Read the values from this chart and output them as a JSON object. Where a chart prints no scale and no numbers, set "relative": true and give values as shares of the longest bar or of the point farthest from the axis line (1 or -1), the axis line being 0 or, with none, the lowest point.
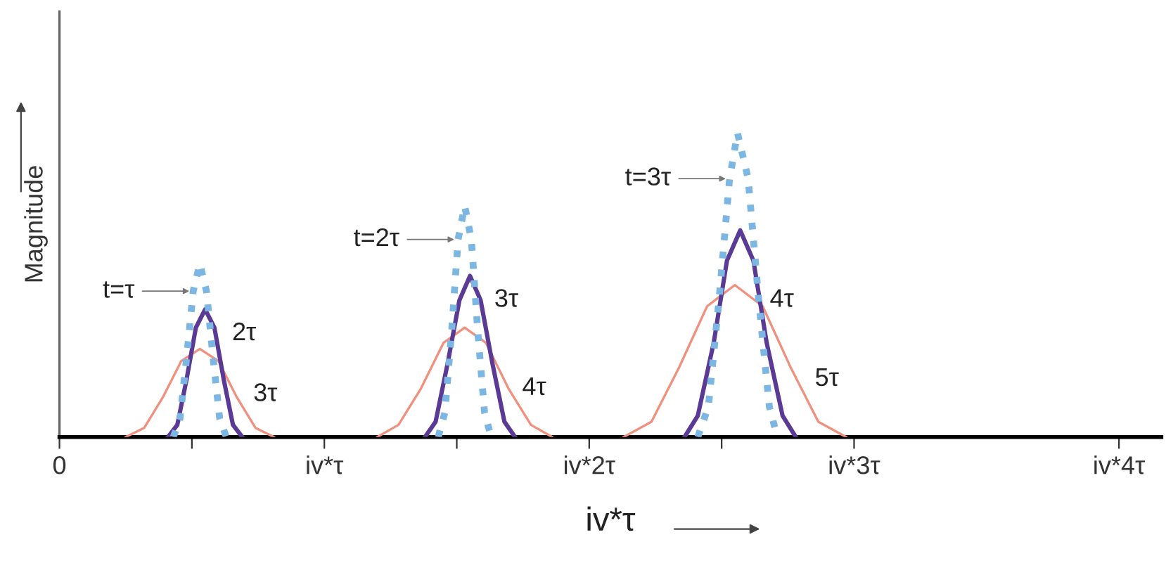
{
  "chart_data": {
    "type": "line",
    "relative": true,
    "xlabel": "iv*τ",
    "ylabel": "Magnitude",
    "xlim": [
      0,
      4.16
    ],
    "xticks": [
      0,
      {
        "value": 0.5,
        "label": null
      },
      {
        "value": 1,
        "label": "iv*τ"
      },
      {
        "value": 1.5,
        "label": null
      },
      {
        "value": 2,
        "label": "iv*2τ"
      },
      {
        "value": 2.5,
        "label": null
      },
      {
        "value": 3,
        "label": "iv*3τ"
      },
      {
        "value": 4,
        "label": "iv*4τ"
      }
    ],
    "grid": false,
    "legend": false,
    "tick_labels": "x",
    "series": [
      {
        "color": "#7cb6e2",
        "line_style": "dotted",
        "x": [
          0.43,
          0.455,
          0.48,
          0.505,
          0.53,
          0.555,
          0.58,
          0.605,
          0.63,
          1.0,
          1.43,
          1.455,
          1.48,
          1.505,
          1.53,
          1.555,
          1.58,
          1.605,
          1.63,
          2.0,
          2.41,
          2.45,
          2.49,
          2.53,
          2.56,
          2.6,
          2.64,
          2.68,
          2.71
        ],
        "values": [
          0,
          0.06,
          0.26,
          0.48,
          0.57,
          0.48,
          0.26,
          0.06,
          0,
          null,
          0,
          0.08,
          0.34,
          0.65,
          0.76,
          0.65,
          0.34,
          0.08,
          0,
          null,
          0,
          0.1,
          0.45,
          0.85,
          1,
          0.85,
          0.45,
          0.1,
          0
        ]
      },
      {
        "color": "#5a3a94",
        "line_style": "solid",
        "x": [
          0.41,
          0.445,
          0.48,
          0.515,
          0.55,
          0.585,
          0.62,
          0.655,
          0.69,
          1.0,
          1.38,
          1.42,
          1.465,
          1.51,
          1.55,
          1.59,
          1.635,
          1.68,
          1.72,
          2.0,
          2.36,
          2.41,
          2.47,
          2.52,
          2.57,
          2.62,
          2.67,
          2.73,
          2.78
        ],
        "values": [
          0,
          0.04,
          0.19,
          0.36,
          0.42,
          0.36,
          0.19,
          0.04,
          0,
          null,
          0,
          0.05,
          0.24,
          0.45,
          0.53,
          0.45,
          0.24,
          0.05,
          0,
          null,
          0,
          0.07,
          0.31,
          0.58,
          0.68,
          0.58,
          0.31,
          0.07,
          0
        ]
      },
      {
        "color": "#f0907e",
        "line_style": "solid",
        "x": [
          0.25,
          0.32,
          0.39,
          0.46,
          0.53,
          0.6,
          0.67,
          0.74,
          0.81,
          1.0,
          1.2,
          1.28,
          1.365,
          1.45,
          1.53,
          1.61,
          1.695,
          1.78,
          1.86,
          2.0,
          2.13,
          2.235,
          2.34,
          2.445,
          2.55,
          2.655,
          2.76,
          2.865,
          2.97
        ],
        "values": [
          0,
          0.03,
          0.13,
          0.25,
          0.29,
          0.25,
          0.13,
          0.03,
          0,
          null,
          0,
          0.04,
          0.16,
          0.31,
          0.36,
          0.31,
          0.16,
          0.04,
          0,
          null,
          0,
          0.05,
          0.23,
          0.43,
          0.5,
          0.43,
          0.23,
          0.05,
          0
        ]
      }
    ],
    "annotations": [
      {
        "text": "t=τ",
        "x": 0.505,
        "y": 0.48
      },
      {
        "text": "2τ",
        "x": 0.6,
        "y": 0.34
      },
      {
        "text": "3τ",
        "x": 0.68,
        "y": 0.14
      },
      {
        "text": "t=2τ",
        "x": 1.505,
        "y": 0.65
      },
      {
        "text": "3τ",
        "x": 1.59,
        "y": 0.45
      },
      {
        "text": "4τ",
        "x": 1.695,
        "y": 0.16
      },
      {
        "text": "t=3τ",
        "x": 2.53,
        "y": 0.85
      },
      {
        "text": "4τ",
        "x": 2.63,
        "y": 0.45
      },
      {
        "text": "5τ",
        "x": 2.8,
        "y": 0.19
      }
    ]
  }
}
